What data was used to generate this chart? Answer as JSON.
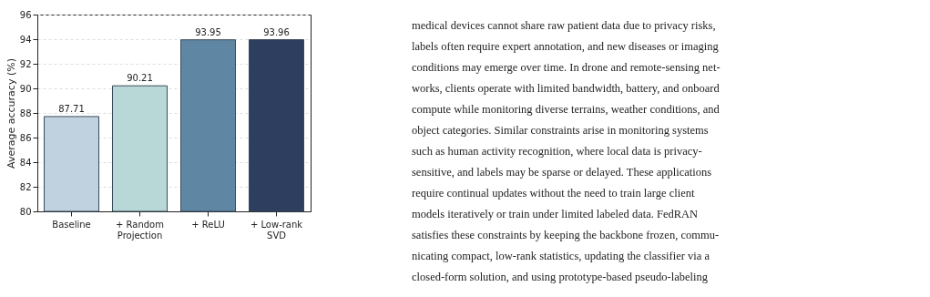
{
  "chart_data": {
    "type": "bar",
    "ylabel": "Average accuracy (%)",
    "categories": [
      "Baseline",
      "+ Random\nProjection",
      "+ ReLU",
      "+ Low-rank\nSVD"
    ],
    "values": [
      87.71,
      90.21,
      93.95,
      93.96
    ],
    "colors": [
      "#c0d1df",
      "#b8d8d8",
      "#5f87a3",
      "#2d3e5e"
    ],
    "ylim": [
      80,
      96
    ],
    "yticks": [
      80,
      82,
      84,
      86,
      88,
      90,
      92,
      94,
      96
    ],
    "grid": "y",
    "data_labels": true,
    "annotations": [
      "medical devices cannot share raw patient data due to privacy risks,",
      "labels often require expert annotation, and new diseases or imaging",
      "conditions may emerge over time. In drone and remote-sensing net-",
      "works, clients operate with limited bandwidth, battery, and onboard",
      "compute while monitoring diverse terrains, weather conditions, and",
      "object categories. Similar constraints arise in monitoring systems",
      "such as human activity recognition, where local data is privacy-",
      "sensitive, and labels may be sparse or delayed. These applications",
      "require continual updates without the need to train large client",
      "models iteratively or train under limited labeled data. FedRAN",
      "satisfies these constraints by keeping the backbone frozen, commu-",
      "nicating compact, low-rank statistics, updating the classifier via a",
      "closed-form solution, and using prototype-based pseudo-labeling"
    ]
  }
}
